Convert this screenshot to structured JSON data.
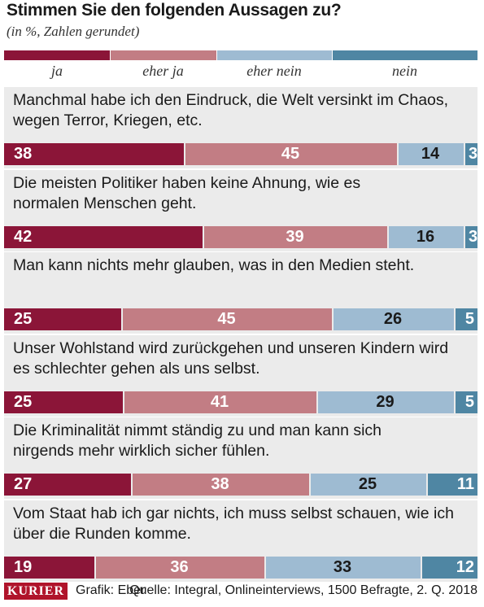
{
  "title": "Stimmen Sie den folgenden Aussagen zu?",
  "subtitle": "(in %, Zahlen gerundet)",
  "footer": {
    "logo": "KURIER",
    "credit": "Grafik: Eber",
    "source": "Quelle: Integral, Onlineinterviews, 1500 Befragte, 2. Q. 2018"
  },
  "colors": {
    "ja": "#8b1538",
    "eher_ja": "#c27d84",
    "eher_nein": "#9ebbd2",
    "nein": "#4f86a3",
    "panel_bg": "#ebebeb"
  },
  "chart_data": {
    "type": "bar",
    "orientation": "horizontal",
    "stacked": true,
    "legend_placement": "top",
    "series": [
      {
        "name": "ja",
        "values": [
          38,
          42,
          25,
          25,
          27,
          19
        ]
      },
      {
        "name": "eher ja",
        "values": [
          45,
          39,
          45,
          41,
          38,
          36
        ]
      },
      {
        "name": "eher nein",
        "values": [
          14,
          16,
          26,
          29,
          25,
          33
        ]
      },
      {
        "name": "nein",
        "values": [
          3,
          3,
          5,
          5,
          11,
          12
        ]
      }
    ],
    "categories": [
      [
        "Manchmal habe ich den Eindruck, die Welt versinkt im Chaos,",
        "wegen Terror, Kriegen, etc."
      ],
      [
        "Die meisten Politiker haben keine Ahnung, wie es",
        "normalen Menschen geht."
      ],
      [
        "Man kann nichts mehr glauben, was in den Medien steht."
      ],
      [
        "Unser Wohlstand wird zurückgehen und unseren Kindern wird",
        "es schlechter gehen als uns selbst."
      ],
      [
        "Die Kriminalität nimmt ständig zu und man kann sich",
        "nirgends mehr wirklich sicher fühlen."
      ],
      [
        "Vom Staat hab ich gar nichts, ich muss selbst schauen, wie ich",
        "über die Runden komme."
      ]
    ]
  }
}
